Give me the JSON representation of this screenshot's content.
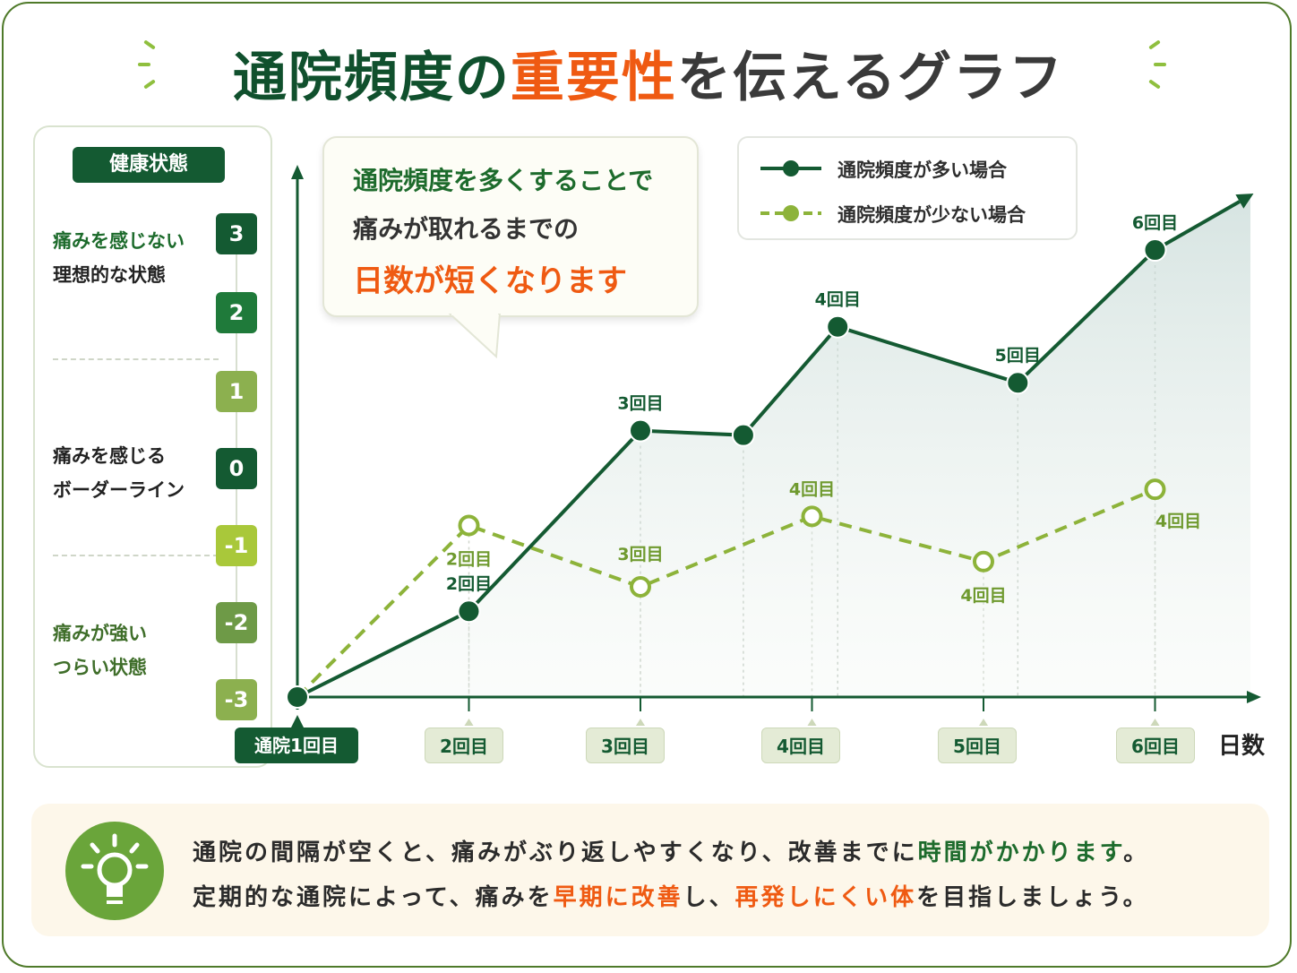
{
  "title": {
    "part1": "通院頻度の",
    "part2": "重要性",
    "part3": "を伝えるグラフ"
  },
  "panel": {
    "title": "健康状態",
    "labels": {
      "ideal_1": "痛みを感じない",
      "ideal_2": "理想的な状態",
      "border_1": "痛みを感じる",
      "border_2": "ボーダーライン",
      "strong_1": "痛みが強い",
      "strong_2": "つらい状態"
    },
    "levels": [
      "3",
      "2",
      "1",
      "0",
      "-1",
      "-2",
      "-3"
    ]
  },
  "callout": {
    "line1": "通院頻度を多くすることで",
    "line2": "痛みが取れるまでの",
    "line3": "日数が短くなります"
  },
  "legend": {
    "high": "通院頻度が多い場合",
    "low": "通院頻度が少ない場合"
  },
  "xaxis": {
    "labels": [
      "通院1回目",
      "2回目",
      "3回目",
      "4回目",
      "5回目",
      "6回目"
    ],
    "title": "日数"
  },
  "bottom": {
    "l1a": "通院の間隔が空くと、痛みがぶり返しやすくなり、改善までに",
    "l1b": "時間がかかります",
    "l1c": "。",
    "l2a": "定期的な通院によって、痛みを",
    "l2b": "早期に改善",
    "l2c": "し、",
    "l2d": "再発しにくい体",
    "l2e": "を目指しましょう。"
  },
  "colors": {
    "dark_green": "#145a32",
    "light_green": "#8db33a",
    "orange": "#ef5a12"
  },
  "chart_data": {
    "type": "line",
    "ylim": [
      -3,
      3
    ],
    "series": [
      {
        "name": "通院頻度が多い場合",
        "points": [
          {
            "x": 0,
            "y": -3,
            "label": ""
          },
          {
            "x": 1,
            "y": -2.05,
            "label": "2回目"
          },
          {
            "x": 2,
            "y": -0.05,
            "label": "3回目"
          },
          {
            "x": 2.6,
            "y": -0.1,
            "label": ""
          },
          {
            "x": 3.15,
            "y": 1.1,
            "label": "4回目"
          },
          {
            "x": 4.2,
            "y": 0.48,
            "label": "5回目"
          },
          {
            "x": 5,
            "y": 1.95,
            "label": "6回目"
          }
        ]
      },
      {
        "name": "通院頻度が少ない場合",
        "points": [
          {
            "x": 0,
            "y": -3,
            "label": ""
          },
          {
            "x": 1,
            "y": -1.1,
            "label": "2回目"
          },
          {
            "x": 2,
            "y": -1.78,
            "label": "3回目"
          },
          {
            "x": 3,
            "y": -1.0,
            "label": "4回目"
          },
          {
            "x": 4,
            "y": -1.5,
            "label": "4回目"
          },
          {
            "x": 5,
            "y": -0.7,
            "label": "4回目"
          }
        ]
      }
    ]
  }
}
